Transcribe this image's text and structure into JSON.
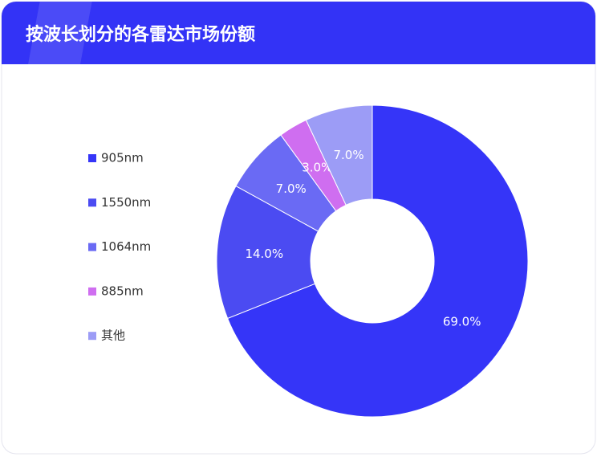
{
  "chart_data": {
    "type": "donut",
    "title": "按波长划分的各雷达市场份额",
    "categories": [
      "905nm",
      "1550nm",
      "1064nm",
      "885nm",
      "其他"
    ],
    "values": [
      69,
      14,
      7,
      3,
      7
    ],
    "value_labels": [
      "69.0%",
      "14.0%",
      "7.0%",
      "3.0%",
      "7.0%"
    ],
    "colors": [
      "#3535f8",
      "#4b4bf2",
      "#6a6af4",
      "#cf6ef0",
      "#9c9cf6"
    ],
    "legend": "left"
  }
}
